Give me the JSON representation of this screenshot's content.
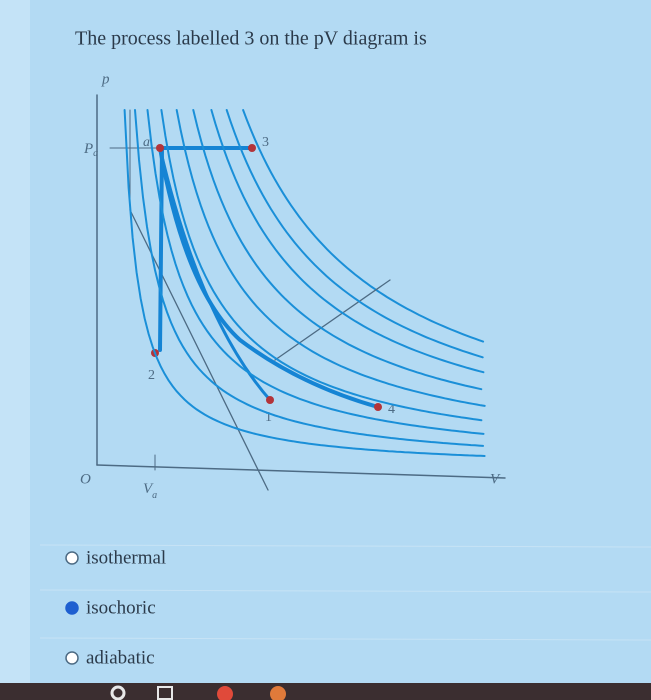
{
  "question": "The process labelled 3 on the pV diagram is",
  "diagram": {
    "p_axis": "p",
    "v_axis": "V",
    "origin": "O",
    "pa_label": {
      "main": "P",
      "sub": "a"
    },
    "va_label": {
      "main": "V",
      "sub": "a"
    },
    "points": [
      "a",
      "3",
      "2",
      "1",
      "4"
    ]
  },
  "options": [
    {
      "label": "isothermal",
      "selected": false
    },
    {
      "label": "isochoric",
      "selected": true
    },
    {
      "label": "adiabatic",
      "selected": false
    }
  ]
}
